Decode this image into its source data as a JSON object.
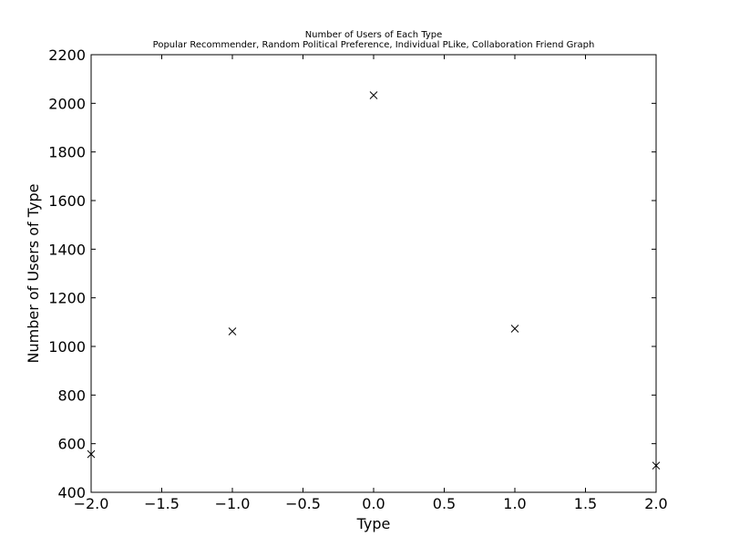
{
  "chart_data": {
    "type": "scatter",
    "title": "Number of Users of Each Type",
    "subtitle": "Popular Recommender, Random Political Preference, Individual PLike, Collaboration Friend Graph",
    "xlabel": "Type",
    "ylabel": "Number of Users of Type",
    "xlim": [
      -2.0,
      2.0
    ],
    "ylim": [
      400,
      2200
    ],
    "xticks": [
      "−2.0",
      "−1.5",
      "−1.0",
      "−0.5",
      "0.0",
      "0.5",
      "1.0",
      "1.5",
      "2.0"
    ],
    "yticks": [
      "400",
      "600",
      "800",
      "1000",
      "1200",
      "1400",
      "1600",
      "1800",
      "2000",
      "2200"
    ],
    "marker": "x",
    "grid": false,
    "series": [
      {
        "x": [
          -2,
          -1,
          0,
          1,
          2
        ],
        "y": [
          557,
          1062,
          2033,
          1073,
          510
        ]
      }
    ]
  }
}
